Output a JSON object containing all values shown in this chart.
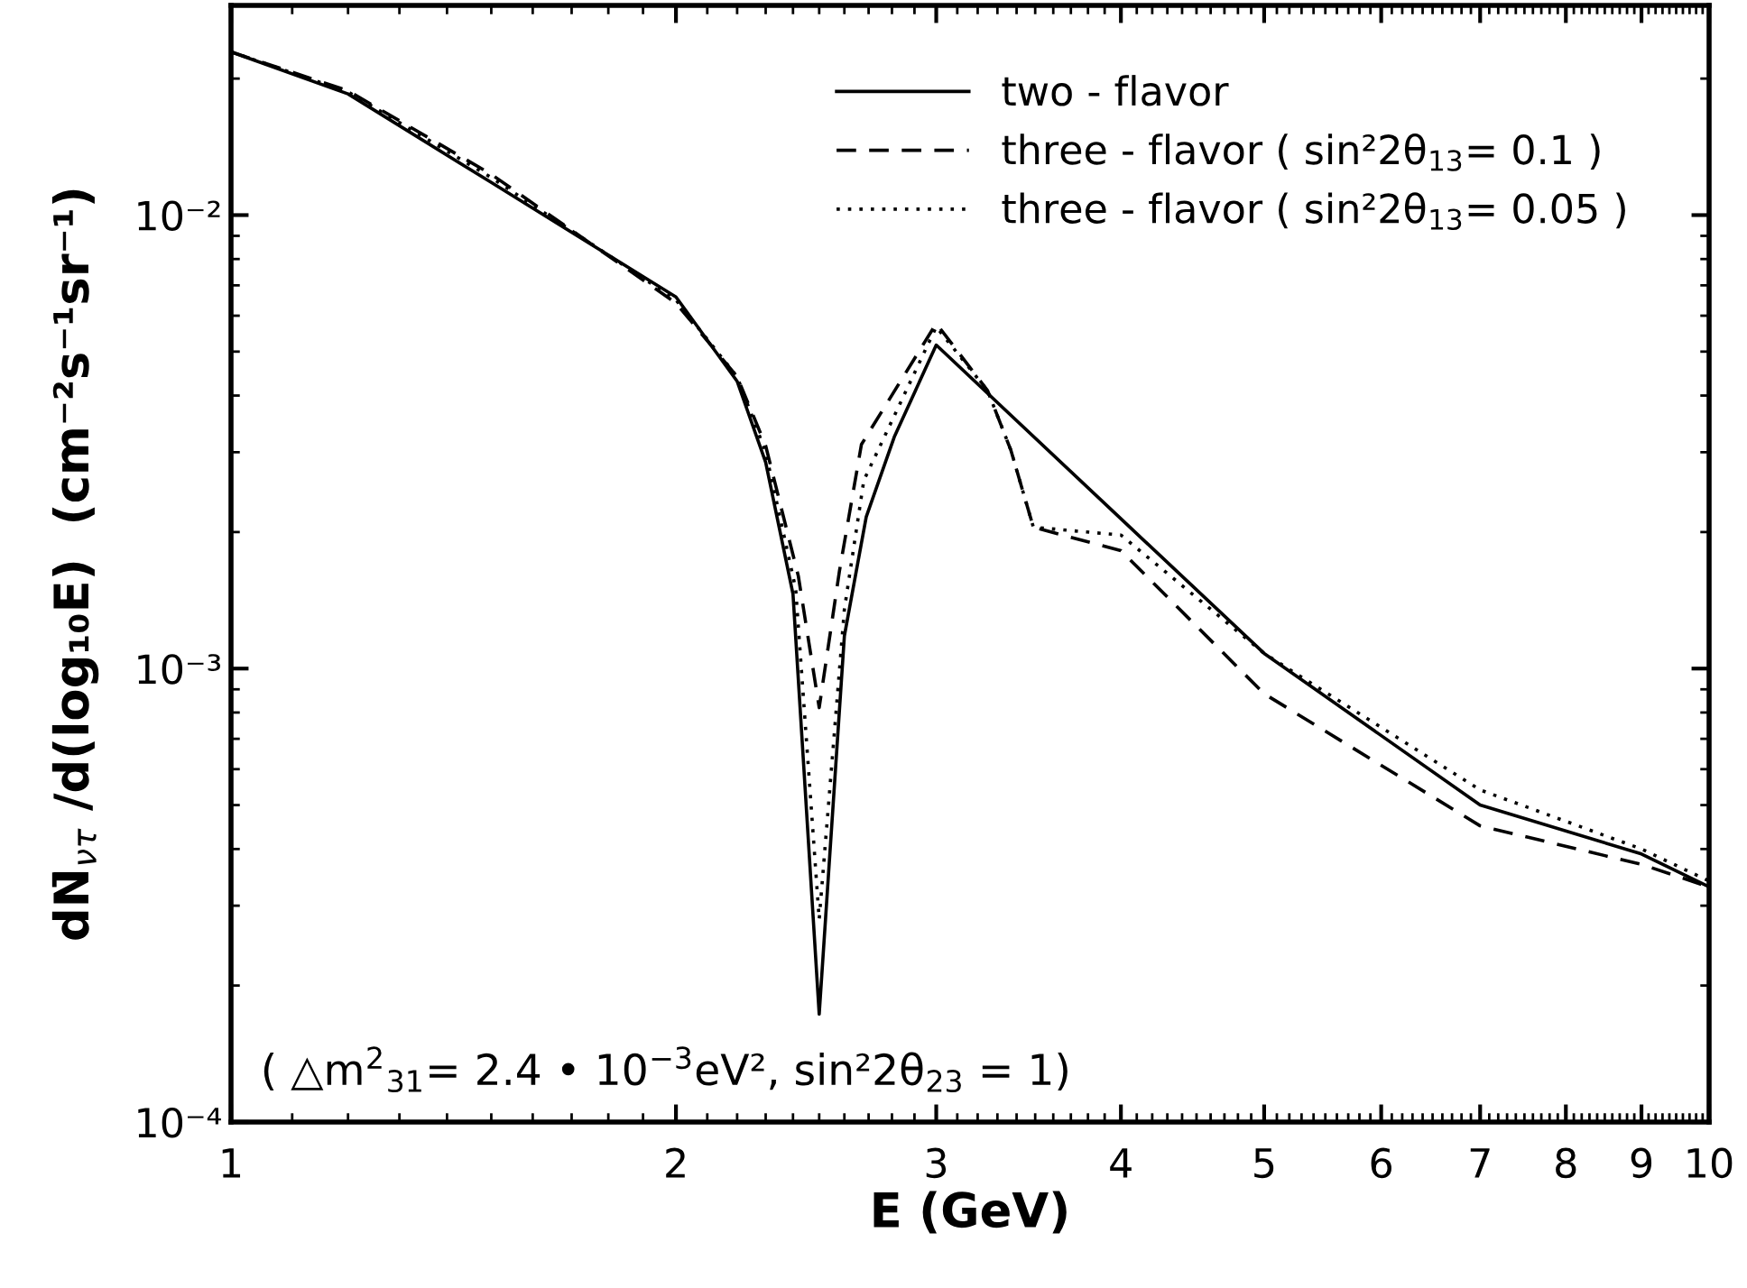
{
  "chart_data": {
    "type": "line",
    "xlabel": "E (GeV)",
    "ylabel": "dN̄$_{ντ}$ /d(log₁₀E)  (cm⁻²s⁻¹sr⁻¹)",
    "log": "xy",
    "xlim": [
      1,
      10
    ],
    "xticks": [
      1,
      2,
      3,
      4,
      5,
      6,
      7,
      8,
      9,
      10
    ],
    "ylim": [
      0.0001,
      0.029
    ],
    "yticks": [
      {
        "value": 0.0001,
        "label": "10⁻⁴"
      },
      {
        "value": 0.001,
        "label": "10⁻³"
      },
      {
        "value": 0.01,
        "label": "10⁻²"
      }
    ],
    "grid": false,
    "legend": "top right",
    "marker": "none",
    "series": [
      {
        "name": "two - flavor",
        "color": "#000000",
        "line_style": "solid",
        "x": [
          1,
          1.2,
          1.5,
          2,
          2.2,
          2.3,
          2.4,
          2.5,
          2.6,
          2.69,
          2.81,
          3,
          4,
          5,
          7,
          9,
          10
        ],
        "values": [
          0.0229,
          0.0185,
          0.0118,
          0.0066,
          0.0043,
          0.00285,
          0.00146,
          0.000173,
          0.00118,
          0.00216,
          0.00324,
          0.00517,
          0.00214,
          0.00108,
          0.0005,
          0.00039,
          0.00033
        ]
      },
      {
        "name": "three - flavor ( sin²2θ$_{13}$= 0.1 )",
        "color": "#000000",
        "line_style": "dashed",
        "x": [
          1,
          1.2,
          1.5,
          2,
          2.2,
          2.3,
          2.42,
          2.5,
          2.58,
          2.67,
          3,
          3.25,
          3.37,
          3.49,
          4,
          5,
          7,
          9,
          10
        ],
        "values": [
          0.0229,
          0.0188,
          0.0123,
          0.0064,
          0.0044,
          0.0031,
          0.0016,
          0.00082,
          0.00164,
          0.00312,
          0.00577,
          0.0041,
          0.00303,
          0.00205,
          0.00182,
          0.00088,
          0.00045,
          0.00037,
          0.00033
        ]
      },
      {
        "name": "three - flavor ( sin²2θ$_{13}$= 0.05 )",
        "color": "#000000",
        "line_style": "dotted",
        "x": [
          1,
          1.2,
          1.5,
          2,
          2.2,
          2.3,
          2.41,
          2.5,
          2.6,
          2.68,
          3,
          3.25,
          3.37,
          3.49,
          4,
          5,
          7,
          9,
          10
        ],
        "values": [
          0.0229,
          0.0187,
          0.0121,
          0.0065,
          0.0044,
          0.003,
          0.0015,
          0.00028,
          0.00135,
          0.0026,
          0.00567,
          0.0041,
          0.00303,
          0.00205,
          0.00197,
          0.00108,
          0.00054,
          0.0004,
          0.00034
        ]
      }
    ],
    "annotations": [
      "( △m$^{2}$$_{31}$= 2.4 • 10$^{−3}$eV², sin²2θ$_{23}$ = 1)"
    ]
  }
}
